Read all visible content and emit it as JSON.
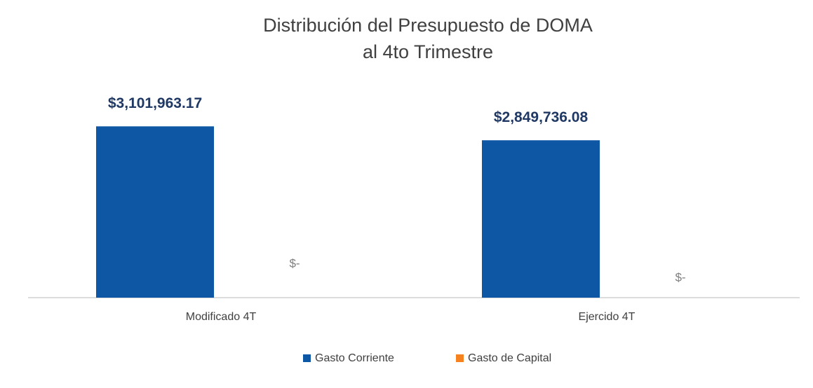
{
  "chart_data": {
    "type": "bar",
    "title": [
      "Distribución  del Presupuesto de DOMA",
      "al 4to Trimestre"
    ],
    "categories": [
      "Modificado 4T",
      "Ejercido 4T"
    ],
    "series": [
      {
        "name": "Gasto Corriente",
        "color": "#0e57a4",
        "values": [
          3101963.17,
          2849736.08
        ],
        "value_labels": [
          "$3,101,963.17",
          "$2,849,736.08"
        ]
      },
      {
        "name": "Gasto de Capital",
        "color": "#f5821f",
        "values": [
          0,
          0
        ],
        "value_labels": [
          "$-",
          "$-"
        ]
      }
    ],
    "ylim": [
      0,
      3500000
    ],
    "legend": "bottom"
  }
}
